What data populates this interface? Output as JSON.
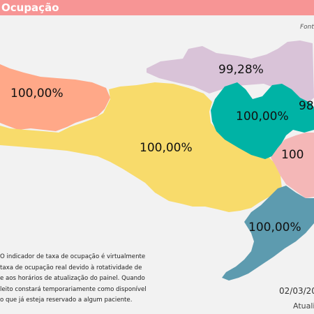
{
  "header": {
    "title": "Ocupação"
  },
  "source_label": "Fonte",
  "colors": {
    "header_bg": "#f79595",
    "grande_oeste": "#ffa888",
    "meio_oeste": "#f8db6b",
    "planalto_norte": "#d9c3d8",
    "vale_itajai": "#00b3a5",
    "grande_florianopolis": "#f4b7b7",
    "sul": "#5d9baf"
  },
  "regions": [
    {
      "key": "grande_oeste",
      "value": "100,00%"
    },
    {
      "key": "planalto_norte",
      "value": "99,28%"
    },
    {
      "key": "vale_itajai",
      "value": "100,00%"
    },
    {
      "key": "nordeste",
      "value": "98"
    },
    {
      "key": "meio_oeste",
      "value": "100,00%"
    },
    {
      "key": "grande_florianopolis",
      "value": "100"
    },
    {
      "key": "sul",
      "value": "100,00%"
    }
  ],
  "note_lines": [
    "O indicador de taxa de ocupação é virtualmente",
    "taxa de ocupação real devido à rotatividade de",
    "e aos horários de atualização do painel.  Quando",
    "leito constará temporariamente como disponível",
    "o que já esteja reservado a algum paciente."
  ],
  "footer": {
    "date": "02/03/20",
    "updated_label": "Atuali"
  }
}
